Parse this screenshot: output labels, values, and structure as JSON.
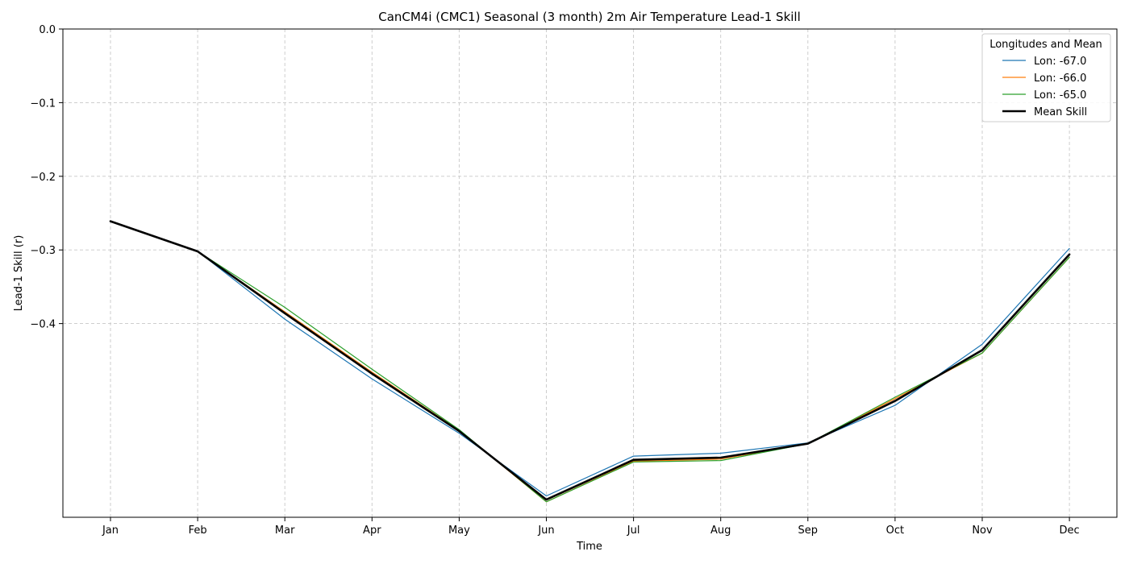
{
  "chart_data": {
    "type": "line",
    "title": "CanCM4i (CMC1) Seasonal (3 month) 2m Air Temperature Lead-1 Skill",
    "xlabel": "Time",
    "ylabel": "Lead-1 Skill (r)",
    "categories": [
      "Jan",
      "Feb",
      "Mar",
      "Apr",
      "May",
      "Jun",
      "Jul",
      "Aug",
      "Sep",
      "Oct",
      "Nov",
      "Dec"
    ],
    "ylim": [
      -0.663,
      0.0
    ],
    "yticks": [
      0.0,
      -0.1,
      -0.2,
      -0.3,
      -0.4
    ],
    "ytick_labels": [
      "0.0",
      "−0.1",
      "−0.2",
      "−0.3",
      "−0.4"
    ],
    "grid": true,
    "legend": {
      "title": "Longitudes and Mean",
      "placement": "top-right"
    },
    "series": [
      {
        "name": "Lon: -67.0",
        "color": "#1f77b4",
        "width": 1.2,
        "values": [
          -0.261,
          -0.302,
          -0.394,
          -0.475,
          -0.549,
          -0.634,
          -0.58,
          -0.576,
          -0.562,
          -0.511,
          -0.428,
          -0.298
        ]
      },
      {
        "name": "Lon: -66.0",
        "color": "#ff7f0e",
        "width": 1.2,
        "values": [
          -0.261,
          -0.302,
          -0.384,
          -0.466,
          -0.545,
          -0.642,
          -0.587,
          -0.584,
          -0.563,
          -0.502,
          -0.44,
          -0.31
        ]
      },
      {
        "name": "Lon: -65.0",
        "color": "#2ca02c",
        "width": 1.2,
        "values": [
          -0.261,
          -0.302,
          -0.378,
          -0.462,
          -0.544,
          -0.642,
          -0.588,
          -0.586,
          -0.563,
          -0.5,
          -0.44,
          -0.31
        ]
      },
      {
        "name": "Mean Skill",
        "color": "#000000",
        "width": 2.6,
        "values": [
          -0.261,
          -0.302,
          -0.386,
          -0.468,
          -0.546,
          -0.639,
          -0.585,
          -0.582,
          -0.563,
          -0.505,
          -0.436,
          -0.306
        ]
      }
    ]
  }
}
